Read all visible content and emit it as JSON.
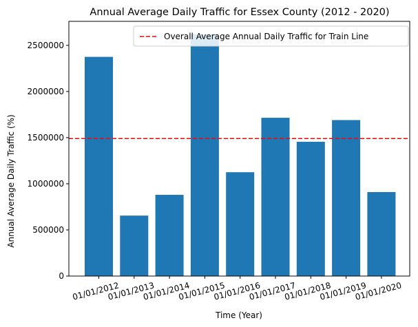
{
  "chart_data": {
    "type": "bar",
    "title": "Annual Average Daily Traffic for Essex County (2012 - 2020)",
    "xlabel": "Time (Year)",
    "ylabel": "Annual Average Daily Traffic (%)",
    "categories": [
      "01/01/2012",
      "01/01/2013",
      "01/01/2014",
      "01/01/2015",
      "01/01/2016",
      "01/01/2017",
      "01/01/2018",
      "01/01/2019",
      "01/01/2020"
    ],
    "values": [
      2375000,
      655000,
      880000,
      2620000,
      1125000,
      1715000,
      1455000,
      1690000,
      910000
    ],
    "ylim": [
      0,
      2760000
    ],
    "yticks": [
      0,
      500000,
      1000000,
      1500000,
      2000000,
      2500000
    ],
    "ytick_labels": [
      "0",
      "500000",
      "1000000",
      "1500000",
      "2000000",
      "2500000"
    ],
    "bar_color": "#1f77b4",
    "reference_line": {
      "label": "Overall Average Annual Daily Traffic for Train Line",
      "value": 1490000,
      "color": "#ff0000",
      "style": "dashed"
    },
    "legend_position": "upper right",
    "grid": false
  }
}
